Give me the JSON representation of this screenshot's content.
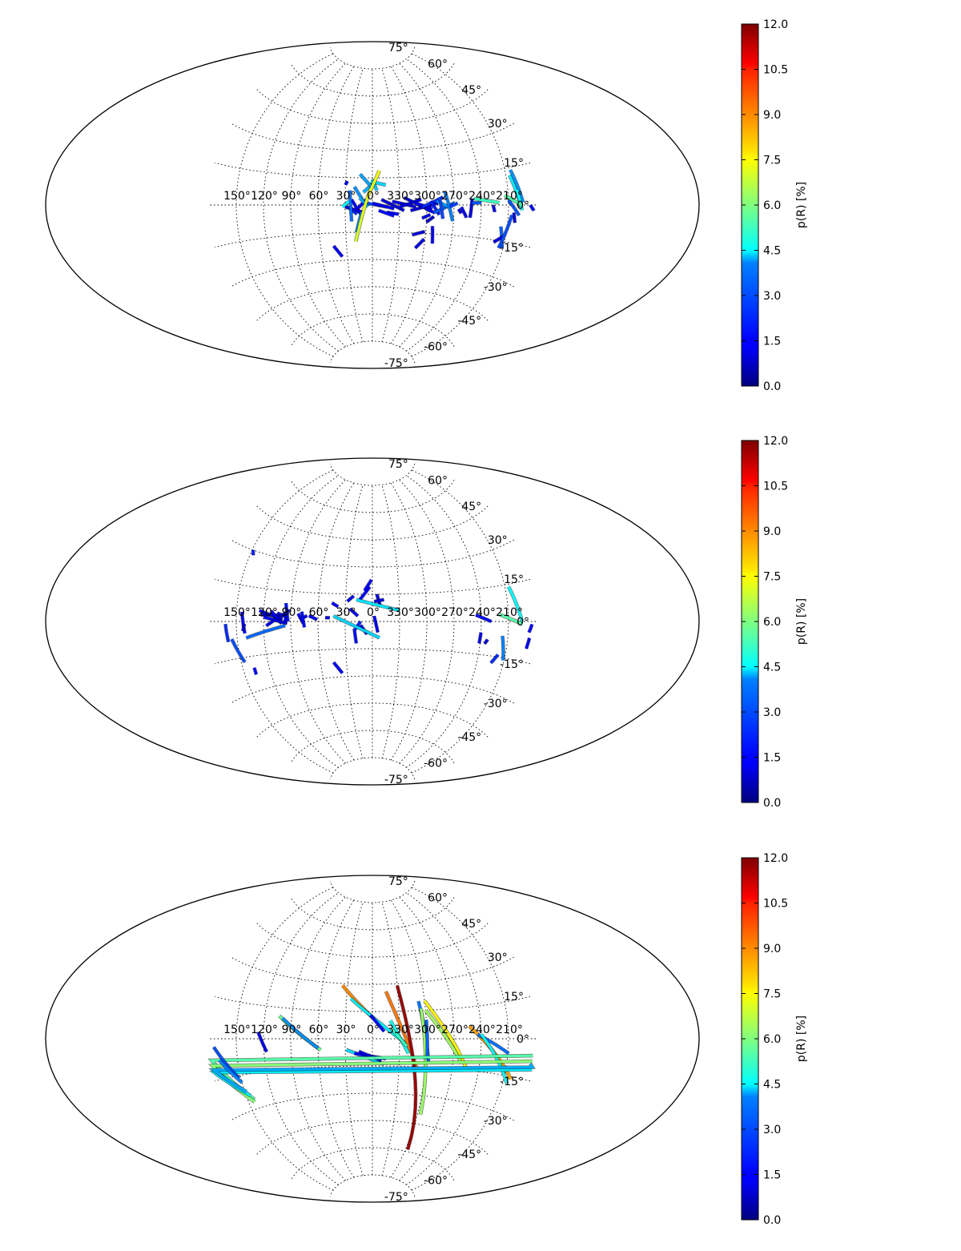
{
  "chart_data": [
    {
      "type": "line",
      "projection": "aitoff",
      "grid": true,
      "lat_tick_labels": [
        "75°",
        "60°",
        "45°",
        "30°",
        "15°",
        "0°",
        "-15°",
        "-30°",
        "-45°",
        "-60°",
        "-75°"
      ],
      "lat_tick_values": [
        75,
        60,
        45,
        30,
        15,
        0,
        -15,
        -30,
        -45,
        -60,
        -75
      ],
      "lon_tick_labels": [
        "150°",
        "120°",
        "90°",
        "60°",
        "30°",
        "0°",
        "330°",
        "300°",
        "270°",
        "240°",
        "210°"
      ],
      "lon_tick_values": [
        150,
        120,
        90,
        60,
        30,
        0,
        330,
        300,
        270,
        240,
        210
      ],
      "colorbar": {
        "label": "p(R) [%]",
        "range": [
          0,
          12
        ],
        "tick_labels": [
          "0.0",
          "1.5",
          "3.0",
          "4.5",
          "6.0",
          "7.5",
          "9.0",
          "10.5",
          "12.0"
        ],
        "tick_values": [
          0,
          1.5,
          3,
          4.5,
          6,
          7.5,
          9,
          10.5,
          12
        ]
      },
      "segments": [
        {
          "l1": 6,
          "b1": 1,
          "l2": 344,
          "b2": -1,
          "p": 2.4
        },
        {
          "l1": 0,
          "b1": 1,
          "l2": 336,
          "b2": -2,
          "p": 1.3
        },
        {
          "l1": 350,
          "b1": 3,
          "l2": 325,
          "b2": -3,
          "p": 1.0
        },
        {
          "l1": 338,
          "b1": 2,
          "l2": 312,
          "b2": -1,
          "p": 1.2
        },
        {
          "l1": 330,
          "b1": -1,
          "l2": 306,
          "b2": 3,
          "p": 1.1
        },
        {
          "l1": 325,
          "b1": 4,
          "l2": 296,
          "b2": -3,
          "p": 0.9
        },
        {
          "l1": 318,
          "b1": -3,
          "l2": 288,
          "b2": 1,
          "p": 1.0
        },
        {
          "l1": 312,
          "b1": 1,
          "l2": 294,
          "b2": -2,
          "p": 1.5
        },
        {
          "l1": 305,
          "b1": -1,
          "l2": 282,
          "b2": 4,
          "p": 2.0
        },
        {
          "l1": 301,
          "b1": -2,
          "l2": 291,
          "b2": -4,
          "p": 1.2
        },
        {
          "l1": 296,
          "b1": 2,
          "l2": 286,
          "b2": -5,
          "p": 1.8
        },
        {
          "l1": 292,
          "b1": -4,
          "l2": 270,
          "b2": 1,
          "p": 2.6
        },
        {
          "l1": 289,
          "b1": 2,
          "l2": 276,
          "b2": -1,
          "p": 3.3
        },
        {
          "l1": 286,
          "b1": 4,
          "l2": 282,
          "b2": -7,
          "p": 2.3
        },
        {
          "l1": 280,
          "b1": 7,
          "l2": 271,
          "b2": -8,
          "p": 3.0
        },
        {
          "l1": 275,
          "b1": -1,
          "l2": 266,
          "b2": 1,
          "p": 2.2
        },
        {
          "l1": 265,
          "b1": -2,
          "l2": 262,
          "b2": -4,
          "p": 1.0
        },
        {
          "l1": 262,
          "b1": -1,
          "l2": 256,
          "b2": -6,
          "p": 1.3
        },
        {
          "l1": 252,
          "b1": -6,
          "l2": 250,
          "b2": 3,
          "p": 1.1
        },
        {
          "l1": 250,
          "b1": 1,
          "l2": 240,
          "b2": 1,
          "p": 2.5
        },
        {
          "l1": 344,
          "b1": -4,
          "l2": 331,
          "b2": -5,
          "p": 1.5
        },
        {
          "l1": 353,
          "b1": -3,
          "l2": 336,
          "b2": -6,
          "p": 1.6
        },
        {
          "l1": 305,
          "b1": -7,
          "l2": 296,
          "b2": -5,
          "p": 1.2
        },
        {
          "l1": 300,
          "b1": -9,
          "l2": 292,
          "b2": -6,
          "p": 0.9
        },
        {
          "l1": 315,
          "b1": -16,
          "l2": 301,
          "b2": -14,
          "p": 1.0
        },
        {
          "l1": 310,
          "b1": -23,
          "l2": 301,
          "b2": -18,
          "p": 1.1
        },
        {
          "l1": 293,
          "b1": -11,
          "l2": 291,
          "b2": -20,
          "p": 1.3
        },
        {
          "l1": 18,
          "b1": -3,
          "l2": 7,
          "b2": 3,
          "p": 1.4
        },
        {
          "l1": 23,
          "b1": 3,
          "l2": 13,
          "b2": -5,
          "p": 1.5
        },
        {
          "l1": 27,
          "b1": -1,
          "l2": 17,
          "b2": -5,
          "p": 2.0
        },
        {
          "l1": 30,
          "b1": -1,
          "l2": 10,
          "b2": -4,
          "p": 1.2
        },
        {
          "l1": 25,
          "b1": 8,
          "l2": 23,
          "b2": -9,
          "p": 2.8
        },
        {
          "l1": 20,
          "b1": 10,
          "l2": 11,
          "b2": 3,
          "p": 3.2
        },
        {
          "l1": 14,
          "b1": 4,
          "l2": 5,
          "b2": -1,
          "p": 3.5
        },
        {
          "l1": 10,
          "b1": 7,
          "l2": -1,
          "b2": 12,
          "p": 3.6
        },
        {
          "l1": 14,
          "b1": 17,
          "l2": 1,
          "b2": 10,
          "p": 3.4
        },
        {
          "l1": 0,
          "b1": 14,
          "l2": 355,
          "b2": 8,
          "p": 3.8
        },
        {
          "l1": 2,
          "b1": 13,
          "l2": 345,
          "b2": 11,
          "p": 4.0
        },
        {
          "l1": 26,
          "b1": 2,
          "l2": 33,
          "b2": -1,
          "p": 4.5
        },
        {
          "l1": 12,
          "b1": -4,
          "l2": 18,
          "b2": -15,
          "p": 3.1
        },
        {
          "l1": 19,
          "b1": -20,
          "l2": 12,
          "b2": -7,
          "p": 7.0
        },
        {
          "l1": 12,
          "b1": -7,
          "l2": 5,
          "b2": 5,
          "p": 7.2
        },
        {
          "l1": 5,
          "b1": 5,
          "l2": 352,
          "b2": 19,
          "p": 7.4
        },
        {
          "l1": 28,
          "b1": 13,
          "l2": 30,
          "b2": 11,
          "p": 1.3
        },
        {
          "l1": 206,
          "b1": 12,
          "l2": 196,
          "b2": -1,
          "p": 4.3
        },
        {
          "l1": 204,
          "b1": 14,
          "l2": 194,
          "b2": 1,
          "p": 3.2
        },
        {
          "l1": 210,
          "b1": 2,
          "l2": 198,
          "b2": -4,
          "p": 2.5
        },
        {
          "l1": 200,
          "b1": 6,
          "l2": 195,
          "b2": -2,
          "p": 4.6
        },
        {
          "l1": 214,
          "b1": 4,
          "l2": 196,
          "b2": 0,
          "p": 5.5
        },
        {
          "l1": 248,
          "b1": 3,
          "l2": 220,
          "b2": 1,
          "p": 5.2
        },
        {
          "l1": 204,
          "b1": -3,
          "l2": 202,
          "b2": -7,
          "p": 1.0
        },
        {
          "l1": 217,
          "b1": -9,
          "l2": 211,
          "b2": -18,
          "p": 2.6
        },
        {
          "l1": 213,
          "b1": -13,
          "l2": 222,
          "b2": -16,
          "p": 1.1
        },
        {
          "l1": 206,
          "b1": -4,
          "l2": 215,
          "b2": -18,
          "p": 2.4
        },
        {
          "l1": 227,
          "b1": 0,
          "l2": 225,
          "b2": -3,
          "p": 1.2
        },
        {
          "l1": 45,
          "b1": -22,
          "l2": 36,
          "b2": -28,
          "p": 1.4
        },
        {
          "l1": -174,
          "b1": 0,
          "l2": -178,
          "b2": -2,
          "p": 1.5
        }
      ]
    },
    {
      "type": "line",
      "projection": "aitoff",
      "grid": true,
      "lat_tick_labels": [
        "75°",
        "60°",
        "45°",
        "30°",
        "15°",
        "0°",
        "-15°",
        "-30°",
        "-45°",
        "-60°",
        "-75°"
      ],
      "lat_tick_values": [
        75,
        60,
        45,
        30,
        15,
        0,
        -15,
        -30,
        -45,
        -60,
        -75
      ],
      "lon_tick_labels": [
        "150°",
        "120°",
        "90°",
        "60°",
        "30°",
        "0°",
        "330°",
        "300°",
        "270°",
        "240°",
        "210°"
      ],
      "lon_tick_values": [
        150,
        120,
        90,
        60,
        30,
        0,
        330,
        300,
        270,
        240,
        210
      ],
      "colorbar": {
        "label": "p(R) [%]",
        "range": [
          0,
          12
        ],
        "tick_labels": [
          "0.0",
          "1.5",
          "3.0",
          "4.5",
          "6.0",
          "7.5",
          "9.0",
          "10.5",
          "12.0"
        ],
        "tick_values": [
          0,
          1.5,
          3,
          4.5,
          6,
          7.5,
          9,
          10.5,
          12
        ]
      },
      "segments": [
        {
          "l1": 125,
          "b1": 5,
          "l2": 99,
          "b2": 1,
          "p": 1.3
        },
        {
          "l1": 123,
          "b1": 3,
          "l2": 96,
          "b2": 3,
          "p": 1.0
        },
        {
          "l1": 120,
          "b1": 2,
          "l2": 100,
          "b2": 0,
          "p": 1.6
        },
        {
          "l1": 117,
          "b1": -2,
          "l2": 96,
          "b2": 4,
          "p": 1.2
        },
        {
          "l1": 112,
          "b1": 5,
          "l2": 100,
          "b2": -1,
          "p": 1.4
        },
        {
          "l1": 110,
          "b1": 1,
          "l2": 94,
          "b2": -1,
          "p": 1.1
        },
        {
          "l1": 105,
          "b1": 4,
          "l2": 93,
          "b2": 2,
          "p": 0.9
        },
        {
          "l1": 96,
          "b1": 9,
          "l2": 93,
          "b2": 0,
          "p": 1.7
        },
        {
          "l1": 93,
          "b1": 6,
          "l2": 97,
          "b2": -1,
          "p": 1.3
        },
        {
          "l1": 140,
          "b1": -7,
          "l2": 96,
          "b2": -2,
          "p": 2.7
        },
        {
          "l1": 82,
          "b1": 4,
          "l2": 76,
          "b2": -1,
          "p": 1.4
        },
        {
          "l1": 80,
          "b1": 1,
          "l2": 72,
          "b2": 3,
          "p": 1.2
        },
        {
          "l1": 78,
          "b1": 5,
          "l2": 75,
          "b2": -3,
          "p": 1.6
        },
        {
          "l1": 70,
          "b1": 3,
          "l2": 61,
          "b2": 1,
          "p": 1.3
        },
        {
          "l1": 52,
          "b1": 2,
          "l2": 47,
          "b2": 2,
          "p": 1.1
        },
        {
          "l1": 144,
          "b1": 4,
          "l2": 141,
          "b2": -5,
          "p": 1.4
        },
        {
          "l1": 141,
          "b1": -1,
          "l2": 143,
          "b2": -4,
          "p": 1.0
        },
        {
          "l1": 162,
          "b1": -1,
          "l2": 160,
          "b2": -8,
          "p": 2.0
        },
        {
          "l1": 156,
          "b1": -7,
          "l2": 146,
          "b2": -17,
          "p": 2.4
        },
        {
          "l1": -176,
          "b1": -1,
          "l2": -173,
          "b2": -4,
          "p": 1.5
        },
        {
          "l1": 137,
          "b1": -20,
          "l2": 137,
          "b2": -23,
          "p": 1.6
        },
        {
          "l1": 146,
          "b1": 28,
          "l2": 149,
          "b2": 30,
          "p": 1.8
        },
        {
          "l1": 45,
          "b1": 10,
          "l2": 38,
          "b2": 8,
          "p": 1.4
        },
        {
          "l1": 28,
          "b1": 11,
          "l2": 21,
          "b2": 14,
          "p": 1.2
        },
        {
          "l1": 25,
          "b1": 7,
          "l2": 16,
          "b2": 3,
          "p": 1.3
        },
        {
          "l1": 13,
          "b1": -2,
          "l2": 6,
          "b2": -7,
          "p": 1.1
        },
        {
          "l1": 20,
          "b1": -4,
          "l2": 18,
          "b2": -12,
          "p": 1.6
        },
        {
          "l1": 20,
          "b1": -5,
          "l2": 13,
          "b2": 0,
          "p": 1.9
        },
        {
          "l1": 14,
          "b1": 12,
          "l2": 3,
          "b2": 19,
          "p": 1.5
        },
        {
          "l1": 9,
          "b1": 17,
          "l2": 1,
          "b2": 23,
          "p": 1.4
        },
        {
          "l1": -2,
          "b1": 3,
          "l2": 354,
          "b2": -6,
          "p": 1.3
        },
        {
          "l1": 355,
          "b1": 15,
          "l2": 351,
          "b2": 8,
          "p": 1.2
        },
        {
          "l1": 358,
          "b1": 11,
          "l2": 347,
          "b2": 12,
          "p": 1.0
        },
        {
          "l1": 18,
          "b1": 12,
          "l2": 330,
          "b2": 6,
          "p": 4.2
        },
        {
          "l1": 43,
          "b1": 3,
          "l2": 352,
          "b2": -9,
          "p": 4.0
        },
        {
          "l1": 240,
          "b1": -5,
          "l2": 241,
          "b2": -10,
          "p": 1.2
        },
        {
          "l1": 235,
          "b1": -10,
          "l2": 232,
          "b2": -8,
          "p": 0.9
        },
        {
          "l1": 246,
          "b1": 3,
          "l2": 229,
          "b2": 0,
          "p": 1.6
        },
        {
          "l1": 220,
          "b1": 3,
          "l2": 195,
          "b2": -1,
          "p": 5.5
        },
        {
          "l1": 206,
          "b1": 14,
          "l2": 195,
          "b2": 0,
          "p": 4.5
        },
        {
          "l1": 216,
          "b1": -6,
          "l2": 211,
          "b2": -16,
          "p": 3.0
        },
        {
          "l1": 218,
          "b1": -14,
          "l2": 224,
          "b2": -18,
          "p": 2.0
        },
        {
          "l1": -174,
          "b1": -6,
          "l2": -172,
          "b2": -10,
          "p": 1.4
        },
        {
          "l1": 45,
          "b1": -22,
          "l2": 36,
          "b2": -28,
          "p": 1.5
        }
      ]
    },
    {
      "type": "line",
      "projection": "aitoff",
      "grid": true,
      "lat_tick_labels": [
        "75°",
        "60°",
        "45°",
        "30°",
        "15°",
        "0°",
        "-15°",
        "-30°",
        "-45°",
        "-60°",
        "-75°"
      ],
      "lat_tick_values": [
        75,
        60,
        45,
        30,
        15,
        0,
        -15,
        -30,
        -45,
        -60,
        -75
      ],
      "lon_tick_labels": [
        "150°",
        "120°",
        "90°",
        "60°",
        "30°",
        "0°",
        "330°",
        "300°",
        "270°",
        "240°",
        "210°"
      ],
      "lon_tick_values": [
        150,
        120,
        90,
        60,
        30,
        0,
        330,
        300,
        270,
        240,
        210
      ],
      "colorbar": {
        "label": "p(R) [%]",
        "range": [
          0,
          12
        ],
        "tick_labels": [
          "0.0",
          "1.5",
          "3.0",
          "4.5",
          "6.0",
          "7.5",
          "9.0",
          "10.5",
          "12.0"
        ],
        "tick_values": [
          0,
          1.5,
          3,
          4.5,
          6,
          7.5,
          9,
          10.5,
          12
        ]
      },
      "segments": [
        {
          "l1": 36,
          "b1": 29,
          "l2": 350,
          "b2": 7,
          "p": 8.9
        },
        {
          "l1": 25,
          "b1": 22,
          "l2": 320,
          "b2": -4,
          "p": 4.3
        },
        {
          "l1": 2,
          "b1": 13,
          "l2": 347,
          "b2": 4,
          "p": 1.6
        },
        {
          "l1": 344,
          "b1": 26,
          "l2": 309,
          "b2": -17,
          "p": 9.1
        },
        {
          "l1": 330,
          "b1": 29,
          "l2": 296,
          "b2": -59,
          "p": 11.7
        },
        {
          "l1": 307,
          "b1": 20,
          "l2": 297,
          "b2": -13,
          "p": 2.9
        },
        {
          "l1": 305,
          "b1": 16,
          "l2": 296,
          "b2": -40,
          "p": 6.3
        },
        {
          "l1": 300,
          "b1": 10,
          "l2": 299,
          "b2": -11,
          "p": 2.6
        },
        {
          "l1": 340,
          "b1": 10,
          "l2": 320,
          "b2": -8,
          "p": 4.7
        },
        {
          "l1": 338,
          "b1": 5,
          "l2": 322,
          "b2": -4,
          "p": 5.2
        },
        {
          "l1": 300,
          "b1": 20,
          "l2": 253,
          "b2": -15,
          "p": 7.6
        },
        {
          "l1": 300,
          "b1": 15,
          "l2": 260,
          "b2": -12,
          "p": 6.4
        },
        {
          "l1": 253,
          "b1": 6,
          "l2": 202,
          "b2": -16,
          "p": 8.6
        },
        {
          "l1": 244,
          "b1": 2,
          "l2": 209,
          "b2": -6,
          "p": 2.8
        },
        {
          "l1": 240,
          "b1": 2,
          "l2": 205,
          "b2": -18,
          "p": 4.6
        },
        {
          "l1": 126,
          "b1": 3,
          "l2": 117,
          "b2": -6,
          "p": 1.2
        },
        {
          "l1": 104,
          "b1": 11,
          "l2": 57,
          "b2": -6,
          "p": 5.8
        },
        {
          "l1": 100,
          "b1": 10,
          "l2": 60,
          "b2": -5,
          "p": 3.2
        },
        {
          "l1": 29,
          "b1": -6,
          "l2": 347,
          "b2": -14,
          "p": 4.0
        },
        {
          "l1": 20,
          "b1": -8,
          "l2": 345,
          "b2": -11,
          "p": 1.5
        },
        {
          "l1": 15,
          "b1": -7,
          "l2": 350,
          "b2": -12,
          "p": 1.0
        },
        {
          "l1": -178,
          "b1": -6,
          "l2": 142,
          "b2": -26,
          "p": 5.5
        },
        {
          "l1": -178,
          "b1": -8,
          "l2": 143,
          "b2": -27,
          "p": 6.1
        },
        {
          "l1": -179,
          "b1": -11,
          "l2": 145,
          "b2": -24,
          "p": 4.3
        },
        {
          "l1": -176,
          "b1": -9,
          "l2": 148,
          "b2": -22,
          "p": 3.5
        },
        {
          "l1": 175,
          "b1": -3,
          "l2": 152,
          "b2": -16,
          "p": 2.4
        },
        {
          "l1": 170,
          "b1": -8,
          "l2": 150,
          "b2": -18,
          "p": 3.0
        }
      ]
    }
  ]
}
